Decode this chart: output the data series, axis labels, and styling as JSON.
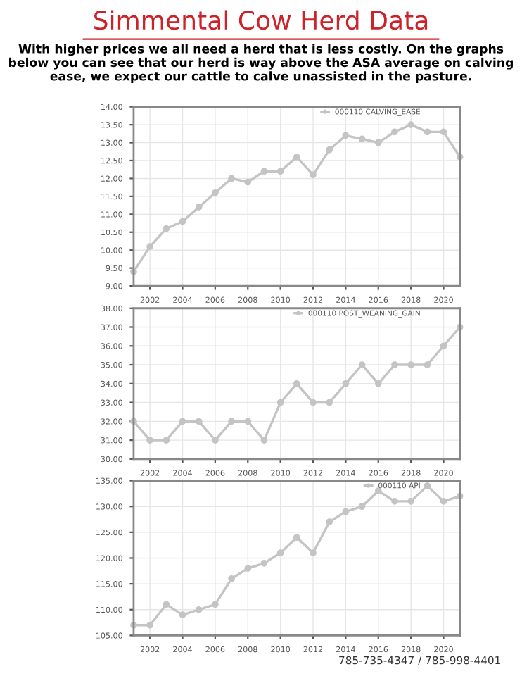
{
  "chart_data": [
    {
      "type": "line",
      "title": "Simmental Cow Herd Data",
      "subtitle": "With higher prices we all need a herd that is less costly. On the graphs below you can see that our herd is way above the ASA average on calving ease, we expect our cattle to calve unassisted in the pasture.",
      "x": [
        2001,
        2002,
        2003,
        2004,
        2005,
        2006,
        2007,
        2008,
        2009,
        2010,
        2011,
        2012,
        2013,
        2014,
        2015,
        2016,
        2017,
        2018,
        2019,
        2020,
        2021
      ],
      "series": [
        {
          "name": "000110 CALVING_EASE",
          "color": "#c4c4c4",
          "values": [
            9.4,
            10.1,
            10.6,
            10.8,
            11.2,
            11.6,
            12.0,
            11.9,
            12.2,
            12.2,
            12.6,
            12.1,
            12.8,
            13.2,
            13.1,
            13.0,
            13.3,
            13.5,
            13.3,
            13.3,
            12.6
          ]
        }
      ],
      "xlim": [
        2001,
        2021
      ],
      "xticks": [
        2002,
        2004,
        2006,
        2008,
        2010,
        2012,
        2014,
        2016,
        2018,
        2020
      ],
      "ylim": [
        9.0,
        14.0
      ],
      "yticks": [
        {
          "value": 9.0,
          "label": "9.00"
        },
        {
          "value": 9.5,
          "label": "9.50"
        },
        {
          "value": 10.0,
          "label": "10.00"
        },
        {
          "value": 10.5,
          "label": "10.50"
        },
        {
          "value": 11.0,
          "label": "11.00"
        },
        {
          "value": 11.5,
          "label": "11.50"
        },
        {
          "value": 12.0,
          "label": "12.00"
        },
        {
          "value": 12.5,
          "label": "12.50"
        },
        {
          "value": 13.0,
          "label": "13.00"
        },
        {
          "value": 13.5,
          "label": "13.50"
        },
        {
          "value": 14.0,
          "label": "14.00"
        }
      ],
      "grid": true,
      "legend": "top right",
      "marker": "circle",
      "line_style": "solid"
    },
    {
      "type": "line",
      "x": [
        2001,
        2002,
        2003,
        2004,
        2005,
        2006,
        2007,
        2008,
        2009,
        2010,
        2011,
        2012,
        2013,
        2014,
        2015,
        2016,
        2017,
        2018,
        2019,
        2020,
        2021
      ],
      "series": [
        {
          "name": "000110 POST_WEANING_GAIN",
          "color": "#c4c4c4",
          "values": [
            32,
            31,
            31,
            32,
            32,
            31,
            32,
            32,
            31,
            33,
            34,
            33,
            33,
            34,
            35,
            34,
            35,
            35,
            35,
            36,
            37
          ]
        }
      ],
      "xlim": [
        2001,
        2021
      ],
      "xticks": [
        2002,
        2004,
        2006,
        2008,
        2010,
        2012,
        2014,
        2016,
        2018,
        2020
      ],
      "ylim": [
        30,
        38
      ],
      "yticks": [
        {
          "value": 30,
          "label": "30.00"
        },
        {
          "value": 31,
          "label": "31.00"
        },
        {
          "value": 32,
          "label": "32.00"
        },
        {
          "value": 33,
          "label": "33.00"
        },
        {
          "value": 34,
          "label": "34.00"
        },
        {
          "value": 35,
          "label": "35.00"
        },
        {
          "value": 36,
          "label": "36.00"
        },
        {
          "value": 37,
          "label": "37.00"
        },
        {
          "value": 38,
          "label": "38.00"
        }
      ],
      "grid": true,
      "legend": "top right",
      "marker": "circle",
      "line_style": "solid"
    },
    {
      "type": "line",
      "annotations": [
        "785-735-4347 / 785-998-4401"
      ],
      "x": [
        2001,
        2002,
        2003,
        2004,
        2005,
        2006,
        2007,
        2008,
        2009,
        2010,
        2011,
        2012,
        2013,
        2014,
        2015,
        2016,
        2017,
        2018,
        2019,
        2020,
        2021
      ],
      "series": [
        {
          "name": "000110 API",
          "color": "#c4c4c4",
          "values": [
            107,
            107,
            111,
            109,
            110,
            111,
            116,
            118,
            119,
            121,
            124,
            121,
            127,
            129,
            130,
            133,
            131,
            131,
            134,
            131,
            132
          ]
        }
      ],
      "xlim": [
        2001,
        2021
      ],
      "xticks": [
        2002,
        2004,
        2006,
        2008,
        2010,
        2012,
        2014,
        2016,
        2018,
        2020
      ],
      "ylim": [
        105,
        135
      ],
      "yticks": [
        {
          "value": 105,
          "label": "105.00"
        },
        {
          "value": 110,
          "label": "110.00"
        },
        {
          "value": 115,
          "label": "115.00"
        },
        {
          "value": 120,
          "label": "120.00"
        },
        {
          "value": 125,
          "label": "125.00"
        },
        {
          "value": 130,
          "label": "130.00"
        },
        {
          "value": 135,
          "label": "135.00"
        }
      ],
      "grid": true,
      "legend": "top right",
      "marker": "circle",
      "line_style": "solid"
    }
  ]
}
